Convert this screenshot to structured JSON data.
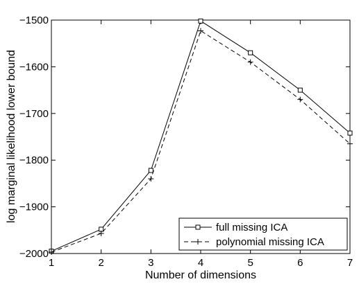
{
  "chart_data": {
    "type": "line",
    "xlabel": "Number of dimensions",
    "ylabel": "log marginal likelihood lower bound",
    "x": [
      1,
      2,
      3,
      4,
      5,
      6,
      7
    ],
    "xticks": [
      "1",
      "2",
      "3",
      "4",
      "5",
      "6",
      "7"
    ],
    "yticks": [
      "−2000",
      "−1900",
      "−1800",
      "−1700",
      "−1600",
      "−1500"
    ],
    "ytick_values": [
      -2000,
      -1900,
      -1800,
      -1700,
      -1600,
      -1500
    ],
    "xlim": [
      1,
      7
    ],
    "ylim": [
      -2000,
      -1500
    ],
    "grid": false,
    "legend_position": "bottom-right",
    "series": [
      {
        "name": "full missing ICA",
        "values": [
          -1995,
          -1948,
          -1822,
          -1502,
          -1570,
          -1650,
          -1742
        ],
        "line_style": "solid",
        "marker": "square",
        "color": "#000000"
      },
      {
        "name": "polynomial missing ICA",
        "values": [
          -1997,
          -1957,
          -1840,
          -1523,
          -1590,
          -1670,
          -1765
        ],
        "line_style": "dashed",
        "marker": "plus",
        "color": "#000000"
      }
    ]
  }
}
